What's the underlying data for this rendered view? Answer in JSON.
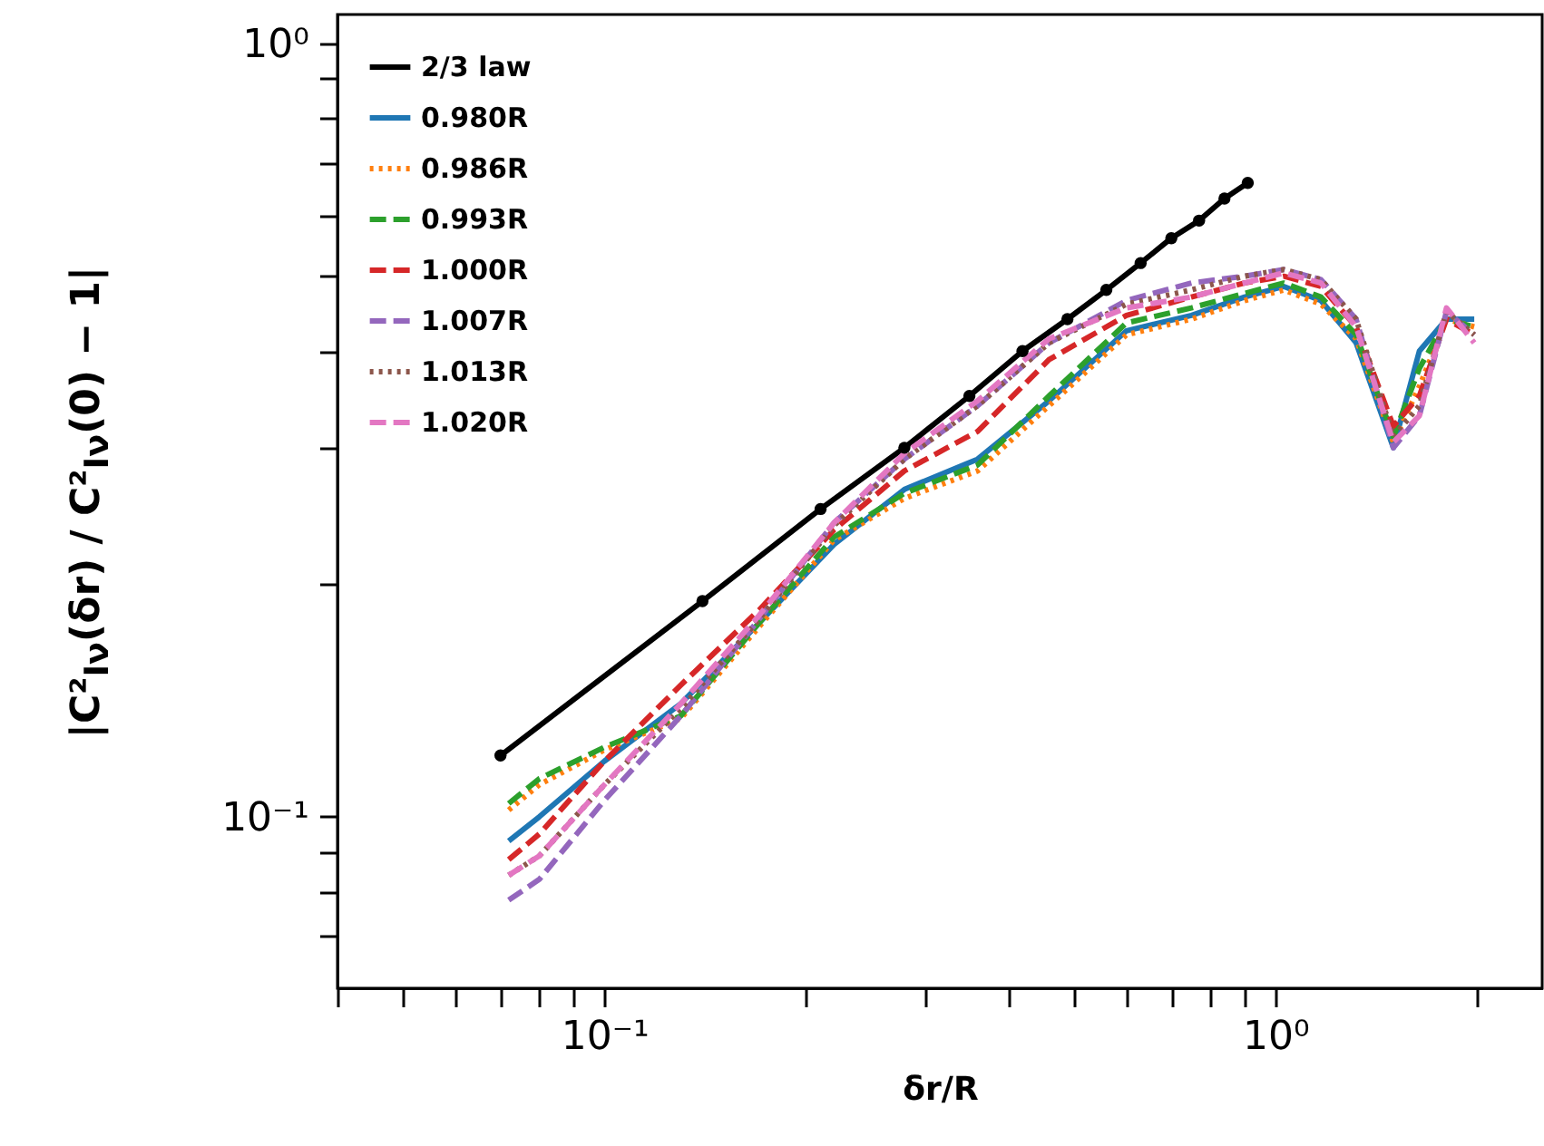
{
  "chart_data": {
    "type": "line",
    "xlabel": "δr/R",
    "ylabel": "|C²$_{Iν}$(δr) / C²$_{Iν}$(0) − 1|",
    "log": "xy",
    "grid": false,
    "legend": "top left",
    "xlim": [
      0.04,
      2.5
    ],
    "ylim": [
      0.06,
      1.09
    ],
    "xticks": [
      {
        "value": 0.04,
        "label": null
      },
      {
        "value": 0.05,
        "label": null
      },
      {
        "value": 0.06,
        "label": null
      },
      {
        "value": 0.07,
        "label": null
      },
      {
        "value": 0.08,
        "label": null
      },
      {
        "value": 0.09,
        "label": null
      },
      {
        "value": 0.1,
        "label": "10⁻¹"
      },
      {
        "value": 0.2,
        "label": null
      },
      {
        "value": 0.3,
        "label": null
      },
      {
        "value": 0.4,
        "label": null
      },
      {
        "value": 0.5,
        "label": null
      },
      {
        "value": 0.6,
        "label": null
      },
      {
        "value": 0.7,
        "label": null
      },
      {
        "value": 0.8,
        "label": null
      },
      {
        "value": 0.9,
        "label": null
      },
      {
        "value": 1,
        "label": "10⁰"
      },
      {
        "value": 2,
        "label": null
      }
    ],
    "yticks": [
      {
        "value": 0.07,
        "label": null
      },
      {
        "value": 0.08,
        "label": null
      },
      {
        "value": 0.09,
        "label": null
      },
      {
        "value": 0.1,
        "label": "10⁻¹"
      },
      {
        "value": 0.2,
        "label": null
      },
      {
        "value": 0.3,
        "label": null
      },
      {
        "value": 0.4,
        "label": null
      },
      {
        "value": 0.5,
        "label": null
      },
      {
        "value": 0.6,
        "label": null
      },
      {
        "value": 0.7,
        "label": null
      },
      {
        "value": 0.8,
        "label": null
      },
      {
        "value": 0.9,
        "label": null
      },
      {
        "value": 1,
        "label": "10⁰"
      }
    ],
    "x": [
      0.072,
      0.08,
      0.1,
      0.13,
      0.17,
      0.22,
      0.28,
      0.36,
      0.46,
      0.6,
      0.75,
      0.9,
      1.03,
      1.17,
      1.32,
      1.5,
      1.64,
      1.8,
      1.98
    ],
    "series": [
      {
        "name": "2/3 law",
        "color": "#000000",
        "marker": "circle",
        "line_style": "solid",
        "x": [
          0.07,
          0.14,
          0.21,
          0.28,
          0.35,
          0.42,
          0.49,
          0.56,
          0.63,
          0.7,
          0.77,
          0.84,
          0.91
        ],
        "values": [
          0.12,
          0.19,
          0.25,
          0.3,
          0.35,
          0.4,
          0.44,
          0.48,
          0.52,
          0.56,
          0.59,
          0.63,
          0.66
        ]
      },
      {
        "name": "0.980R",
        "color": "#1f77b4",
        "marker": "none",
        "line_style": "solid",
        "values": [
          0.093,
          0.1,
          0.118,
          0.14,
          0.178,
          0.225,
          0.265,
          0.29,
          0.345,
          0.425,
          0.445,
          0.47,
          0.485,
          0.465,
          0.41,
          0.3,
          0.4,
          0.44,
          0.44
        ]
      },
      {
        "name": "0.986R",
        "color": "#ff7f0e",
        "marker": "none",
        "line_style": "dotted",
        "values": [
          0.102,
          0.11,
          0.122,
          0.134,
          0.176,
          0.228,
          0.258,
          0.28,
          0.34,
          0.42,
          0.44,
          0.465,
          0.48,
          0.46,
          0.415,
          0.305,
          0.36,
          0.44,
          0.43
        ]
      },
      {
        "name": "0.993R",
        "color": "#2ca02c",
        "marker": "none",
        "line_style": "dashed",
        "values": [
          0.104,
          0.112,
          0.123,
          0.135,
          0.178,
          0.23,
          0.262,
          0.285,
          0.35,
          0.435,
          0.455,
          0.475,
          0.49,
          0.47,
          0.42,
          0.31,
          0.38,
          0.44,
          0.43
        ]
      },
      {
        "name": "1.000R",
        "color": "#d62728",
        "marker": "none",
        "line_style": "dashed",
        "values": [
          0.088,
          0.095,
          0.118,
          0.148,
          0.185,
          0.235,
          0.28,
          0.315,
          0.39,
          0.445,
          0.47,
          0.49,
          0.5,
          0.485,
          0.43,
          0.32,
          0.35,
          0.44,
          0.42
        ]
      },
      {
        "name": "1.007R",
        "color": "#9467bd",
        "marker": "none",
        "line_style": "dashed",
        "values": [
          0.078,
          0.083,
          0.105,
          0.135,
          0.18,
          0.24,
          0.29,
          0.34,
          0.41,
          0.465,
          0.49,
          0.5,
          0.51,
          0.495,
          0.44,
          0.3,
          0.33,
          0.45,
          0.42
        ]
      },
      {
        "name": "1.013R",
        "color": "#8c564b",
        "marker": "none",
        "line_style": "dotted",
        "values": [
          0.084,
          0.089,
          0.11,
          0.138,
          0.18,
          0.238,
          0.29,
          0.34,
          0.41,
          0.46,
          0.48,
          0.5,
          0.51,
          0.495,
          0.44,
          0.31,
          0.34,
          0.45,
          0.42
        ]
      },
      {
        "name": "1.020R",
        "color": "#e377c2",
        "marker": "none",
        "line_style": "dashed",
        "values": [
          0.084,
          0.089,
          0.11,
          0.14,
          0.182,
          0.24,
          0.295,
          0.345,
          0.415,
          0.455,
          0.47,
          0.49,
          0.505,
          0.49,
          0.43,
          0.305,
          0.33,
          0.455,
          0.41
        ]
      }
    ]
  }
}
